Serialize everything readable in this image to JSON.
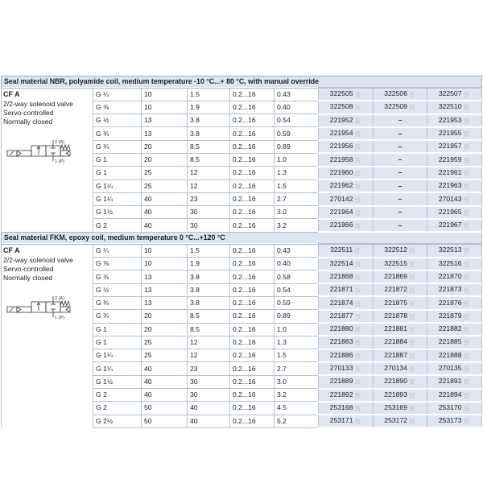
{
  "sections": [
    {
      "title": "Seal material NBR, polyamide coil, medium temperature -10 °C...+ 80 °C, with manual override",
      "product": {
        "name": "CF A",
        "lines": [
          "2/2-way solenoid valve",
          "Servo-controlled",
          "Normally closed"
        ],
        "symbol_labels": [
          "2 (A)",
          "1 (P)"
        ]
      },
      "rows": [
        [
          "G ¼",
          "10",
          "1.5",
          "0.2...16",
          "0.43",
          "322505",
          "322506",
          "322507"
        ],
        [
          "G ⅜",
          "10",
          "1.9",
          "0.2...16",
          "0.40",
          "322508",
          "322509",
          "322510"
        ],
        [
          "G ½",
          "13",
          "3.8",
          "0.2...16",
          "0.54",
          "221952",
          "–",
          "221953"
        ],
        [
          "G ¾",
          "13",
          "3.8",
          "0.2...16",
          "0.59",
          "221954",
          "–",
          "221955"
        ],
        [
          "G ¾",
          "20",
          "8.5",
          "0.2...16",
          "0.89",
          "221956",
          "–",
          "221957"
        ],
        [
          "G 1",
          "20",
          "8.5",
          "0.2...16",
          "1.0",
          "221958",
          "–",
          "221959"
        ],
        [
          "G 1",
          "25",
          "12",
          "0.2...16",
          "1.3",
          "221960",
          "–",
          "221961"
        ],
        [
          "G 1¼",
          "25",
          "12",
          "0.2...16",
          "1.5",
          "221962",
          "–",
          "221963"
        ],
        [
          "G 1¼",
          "40",
          "23",
          "0.2...16",
          "2.7",
          "270142",
          "–",
          "270143"
        ],
        [
          "G 1½",
          "40",
          "30",
          "0.2...16",
          "3.0",
          "221964",
          "–",
          "221965"
        ],
        [
          "G 2",
          "40",
          "30",
          "0.2...16",
          "3.2",
          "221966",
          "–",
          "221967"
        ]
      ]
    },
    {
      "title": "Seal material FKM, epoxy coil, medium temperature 0 °C...+120 °C",
      "product": {
        "name": "CF A",
        "lines": [
          "2/2-way solenoid valve",
          "Servo-controlled",
          "Normally closed"
        ],
        "symbol_labels": [
          "2 (A)",
          "1 (P)"
        ]
      },
      "rows": [
        [
          "G ¼",
          "10",
          "1.5",
          "0.2...16",
          "0.43",
          "322511",
          "322512",
          "322513"
        ],
        [
          "G ⅜",
          "10",
          "1.9",
          "0.2...16",
          "0.40",
          "322514",
          "322515",
          "322516"
        ],
        [
          "G ⅜",
          "13",
          "3.8",
          "0.2...16",
          "0.58",
          "221868",
          "221869",
          "221870"
        ],
        [
          "G ½",
          "13",
          "3.8",
          "0.2...16",
          "0.54",
          "221871",
          "221872",
          "221873"
        ],
        [
          "G ¾",
          "13",
          "3.8",
          "0.2...16",
          "0.59",
          "221874",
          "221875",
          "221876"
        ],
        [
          "G ¾",
          "20",
          "8.5",
          "0.2...16",
          "0.89",
          "221877",
          "221878",
          "221879"
        ],
        [
          "G 1",
          "20",
          "8.5",
          "0.2...16",
          "1.0",
          "221880",
          "221881",
          "221882"
        ],
        [
          "G 1",
          "25",
          "12",
          "0.2...16",
          "1.3",
          "221883",
          "221884",
          "221885"
        ],
        [
          "G 1¼",
          "25",
          "12",
          "0.2...16",
          "1.5",
          "221886",
          "221887",
          "221888"
        ],
        [
          "G 1¼",
          "40",
          "23",
          "0.2...16",
          "2.7",
          "270133",
          "270134",
          "270135"
        ],
        [
          "G 1½",
          "40",
          "30",
          "0.2...16",
          "3.0",
          "221889",
          "221890",
          "221891"
        ],
        [
          "G 2",
          "40",
          "30",
          "0.2...16",
          "3.2",
          "221892",
          "221893",
          "221894"
        ],
        [
          "G 2",
          "50",
          "40",
          "0.2...16",
          "4.5",
          "253168",
          "253169",
          "253170"
        ],
        [
          "G 2½",
          "50",
          "40",
          "0.2...16",
          "5.2",
          "253171",
          "253172",
          "253173"
        ]
      ]
    }
  ],
  "icons": {
    "order": "cart-icon",
    "cart_glyph": "🛒"
  },
  "colors": {
    "header_bg": "#dde5ef",
    "order_cell_bg": "#dfe6f0",
    "border": "#b3c0d2"
  }
}
